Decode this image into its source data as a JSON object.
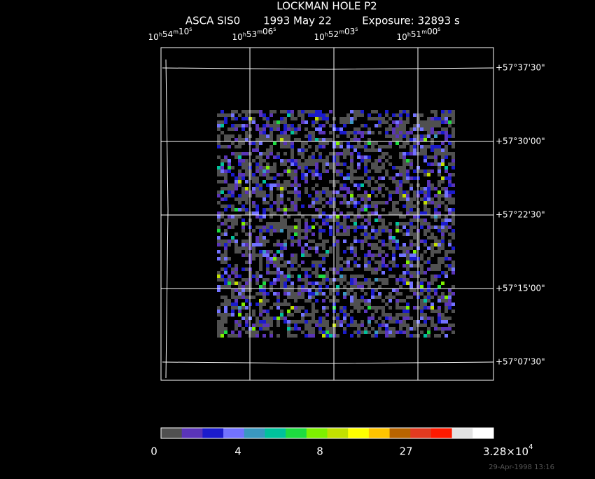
{
  "header": {
    "title": "LOCKMAN HOLE P2",
    "instrument": "ASCA SIS0",
    "date": "1993 May 22",
    "exposure": "Exposure: 32893 s"
  },
  "ra_units": [
    "h",
    "m",
    "s"
  ],
  "ra_labels": [
    [
      "10",
      "54",
      "10"
    ],
    [
      "10",
      "53",
      "06"
    ],
    [
      "10",
      "52",
      "03"
    ],
    [
      "10",
      "51",
      "00"
    ]
  ],
  "dec_labels": [
    "+57°37'30\"",
    "+57°30'00\"",
    "+57°22'30\"",
    "+57°15'00\"",
    "+57°07'30\""
  ],
  "colorbar": {
    "colors": [
      "#505050",
      "#5a34b8",
      "#1b1bcc",
      "#7272ff",
      "#3a98c0",
      "#00c29c",
      "#1edc40",
      "#7ef000",
      "#c2e000",
      "#ffff00",
      "#ffc400",
      "#b86400",
      "#e23a20",
      "#ff1a00",
      "#e2e2e2",
      "#ffffff"
    ],
    "labels": [
      "0",
      "4",
      "8",
      "27"
    ],
    "max_mantissa": "3.28×10",
    "max_exponent": "4"
  },
  "timestamp": "29-Apr-1998 13:16"
}
